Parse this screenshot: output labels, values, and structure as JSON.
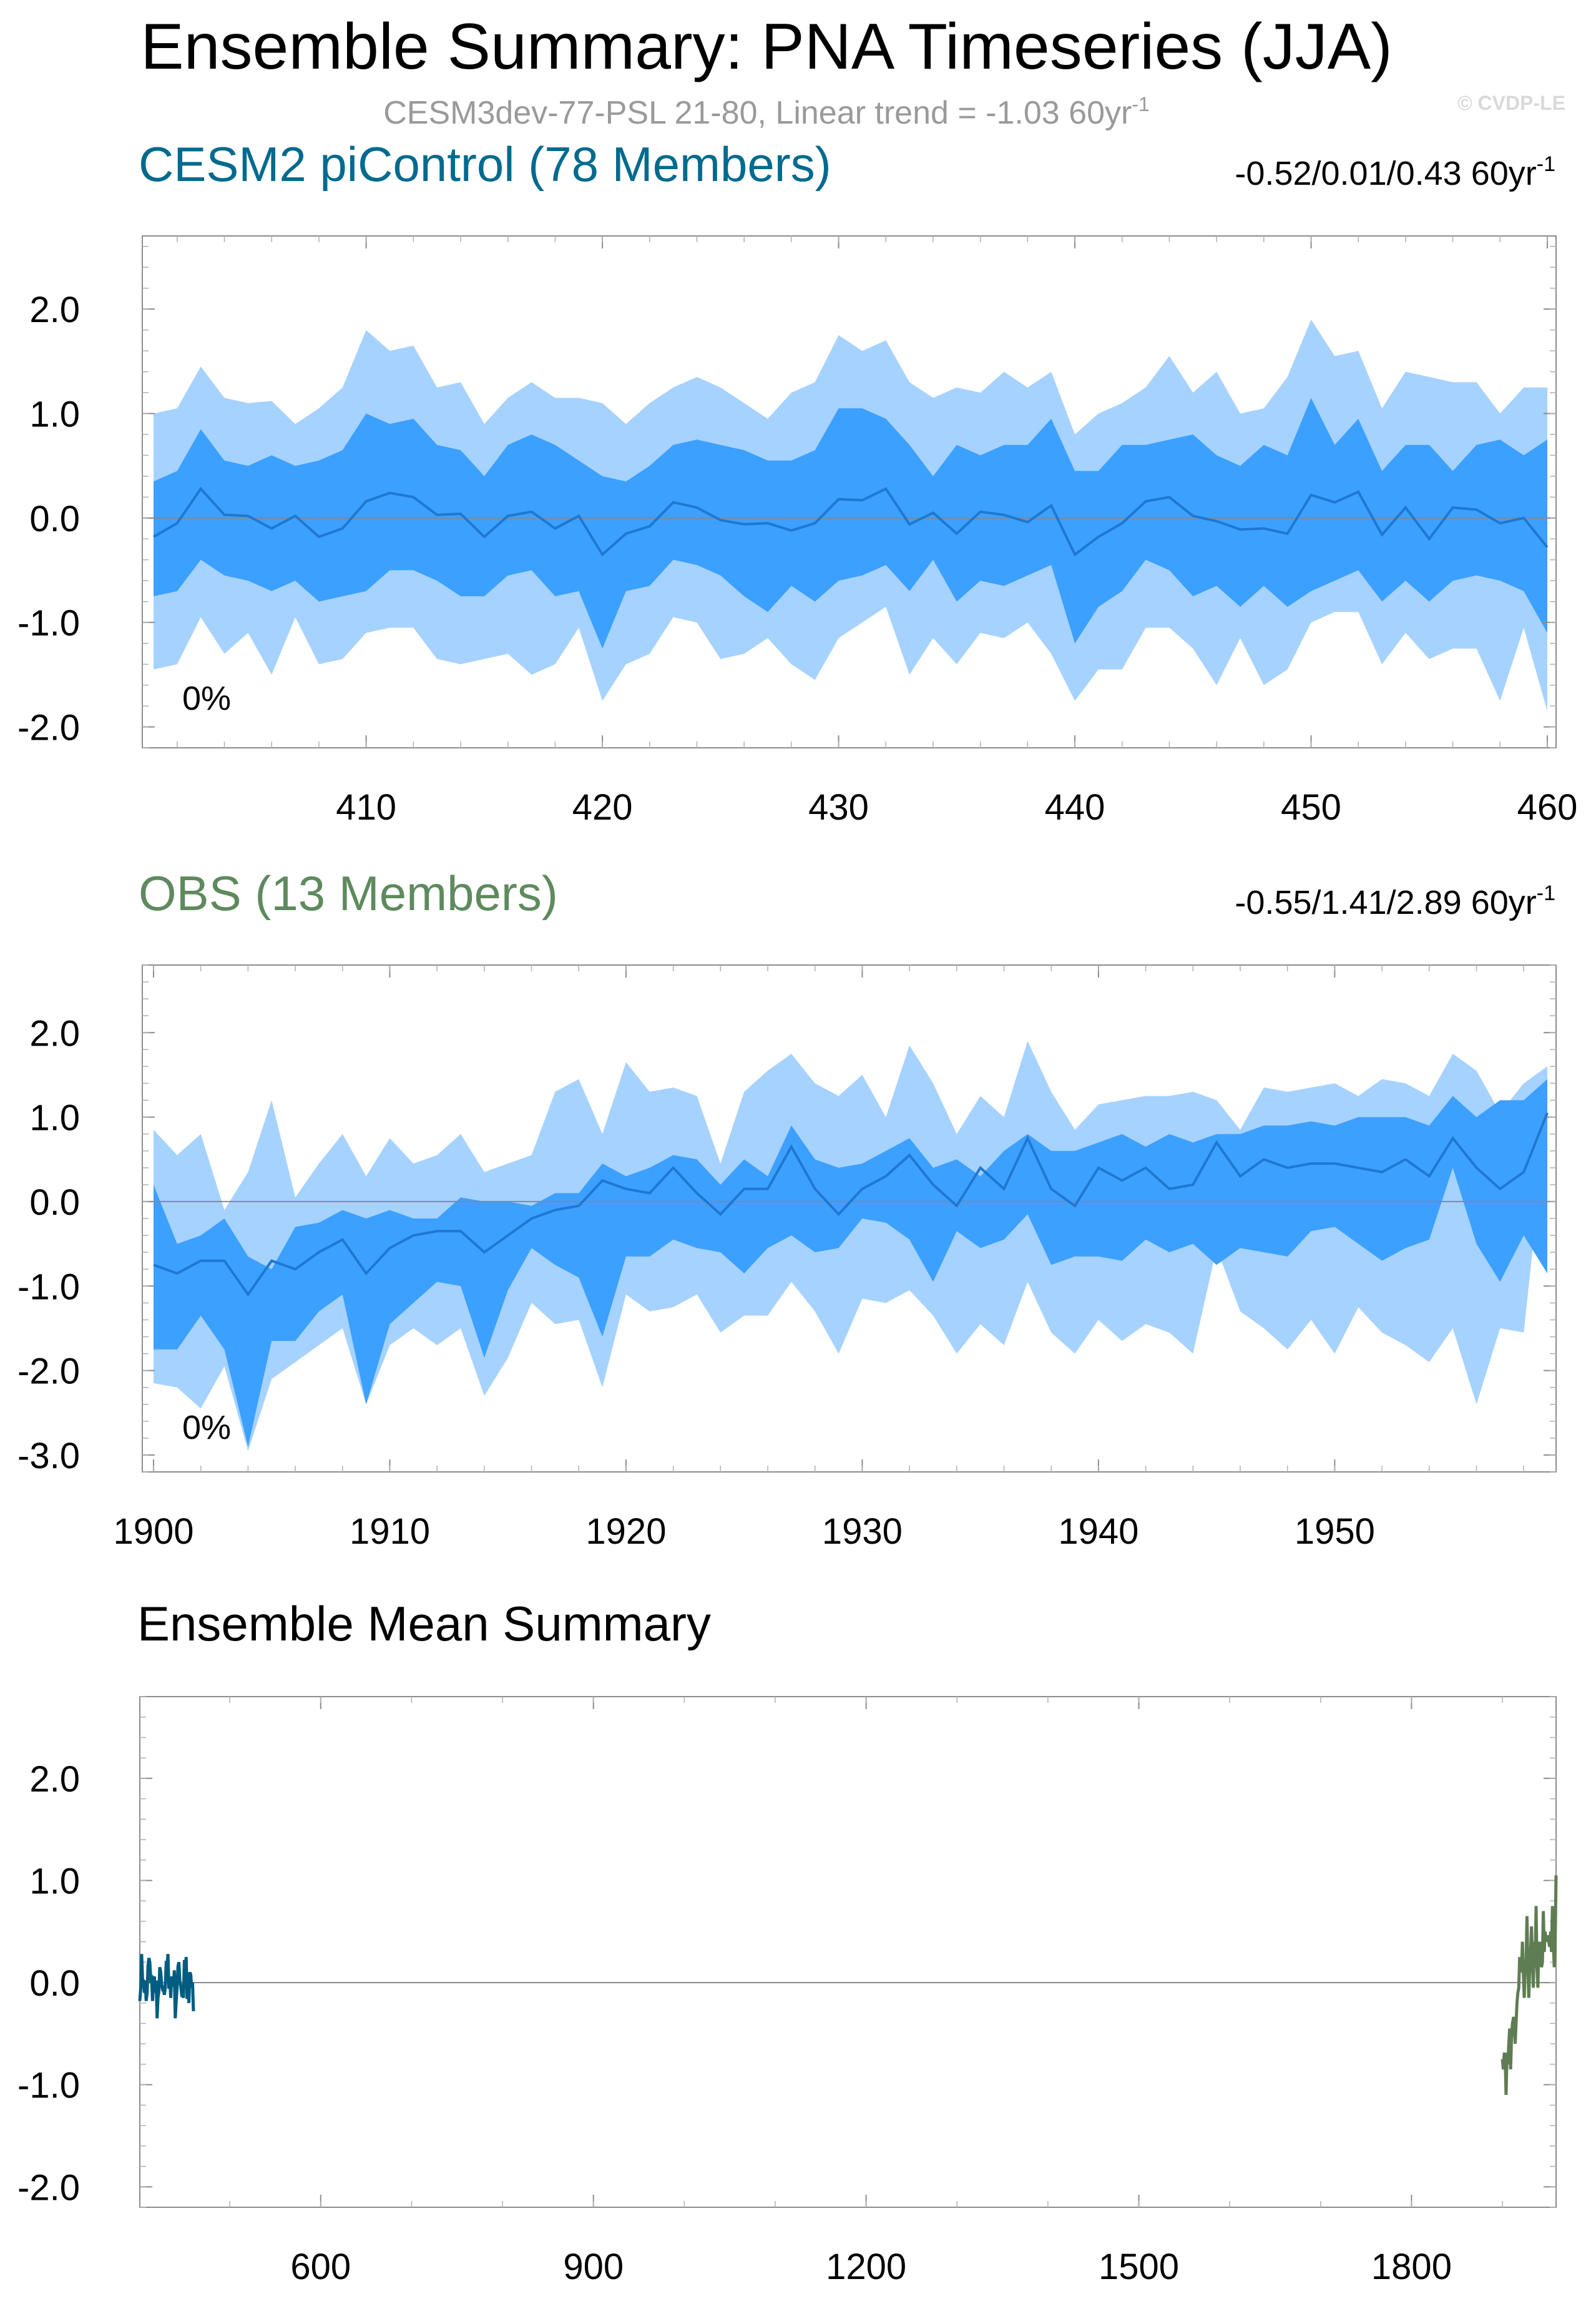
{
  "title": "Ensemble Summary: PNA Timeseries (JJA)",
  "subtitle": {
    "text": "CESM3dev-77-PSL 21-80, Linear trend = -1.03 60yr",
    "sup": "-1"
  },
  "watermark": "© CVDP-LE",
  "colors": {
    "outer_band": "#a6d2ff",
    "inner_band": "#3ca0ff",
    "mean_line": "#1e78d2",
    "zero_line": "#888888",
    "cesm_title": "#006a8e",
    "obs_title": "#5e8a5e",
    "cesm_mean": "#005c80",
    "obs_mean": "#5e7d52"
  },
  "chart_data": [
    {
      "type": "area",
      "id": "cesm",
      "title": "CESM2 piControl (78 Members)",
      "trend_label": {
        "text": "-0.52/0.01/0.43 60yr",
        "sup": "-1"
      },
      "pct_label": "0%",
      "x_start": 401,
      "xlim": [
        401,
        460
      ],
      "ylim": [
        -2.2,
        2.7
      ],
      "x_ticks": [
        410,
        420,
        430,
        440,
        450,
        460
      ],
      "x_tick_labels": [
        "410",
        "420",
        "430",
        "440",
        "450",
        "460"
      ],
      "y_ticks": [
        2.0,
        1.0,
        0.0,
        -1.0,
        -2.0
      ],
      "y_tick_labels": [
        "2.0",
        "1.0",
        "0.0",
        "-1.0",
        "-2.0"
      ],
      "series": [
        {
          "name": "p97.5",
          "values": [
            1.0,
            1.05,
            1.45,
            1.15,
            1.1,
            1.12,
            0.9,
            1.05,
            1.25,
            1.8,
            1.6,
            1.65,
            1.25,
            1.3,
            0.9,
            1.15,
            1.3,
            1.15,
            1.15,
            1.1,
            0.9,
            1.1,
            1.25,
            1.35,
            1.25,
            1.1,
            0.95,
            1.2,
            1.3,
            1.75,
            1.6,
            1.7,
            1.3,
            1.15,
            1.25,
            1.2,
            1.4,
            1.25,
            1.4,
            0.8,
            1.0,
            1.1,
            1.25,
            1.55,
            1.2,
            1.4,
            1.0,
            1.05,
            1.35,
            1.9,
            1.55,
            1.6,
            1.05,
            1.4,
            1.35,
            1.3,
            1.3,
            1.0,
            1.25,
            1.25
          ]
        },
        {
          "name": "p84",
          "values": [
            0.35,
            0.45,
            0.85,
            0.55,
            0.5,
            0.6,
            0.5,
            0.55,
            0.65,
            1.0,
            0.9,
            0.95,
            0.7,
            0.65,
            0.4,
            0.7,
            0.8,
            0.7,
            0.55,
            0.4,
            0.35,
            0.5,
            0.7,
            0.75,
            0.7,
            0.65,
            0.55,
            0.55,
            0.65,
            1.05,
            1.05,
            0.95,
            0.7,
            0.4,
            0.7,
            0.6,
            0.7,
            0.7,
            0.95,
            0.45,
            0.45,
            0.7,
            0.7,
            0.75,
            0.8,
            0.6,
            0.5,
            0.7,
            0.6,
            1.15,
            0.7,
            0.95,
            0.45,
            0.7,
            0.7,
            0.45,
            0.7,
            0.75,
            0.6,
            0.75
          ]
        },
        {
          "name": "mean",
          "values": [
            -0.18,
            -0.05,
            0.28,
            0.03,
            0.02,
            -0.1,
            0.02,
            -0.18,
            -0.1,
            0.16,
            0.24,
            0.2,
            0.03,
            0.04,
            -0.18,
            0.02,
            0.06,
            -0.1,
            0.02,
            -0.35,
            -0.15,
            -0.08,
            0.15,
            0.1,
            -0.02,
            -0.06,
            -0.05,
            -0.12,
            -0.05,
            0.18,
            0.17,
            0.28,
            -0.06,
            0.05,
            -0.15,
            0.06,
            0.03,
            -0.04,
            0.12,
            -0.35,
            -0.18,
            -0.05,
            0.16,
            0.2,
            0.02,
            -0.03,
            -0.11,
            -0.1,
            -0.15,
            0.22,
            0.15,
            0.25,
            -0.16,
            0.1,
            -0.2,
            0.1,
            0.08,
            -0.05,
            0.0,
            -0.28
          ]
        },
        {
          "name": "p16",
          "values": [
            -0.75,
            -0.7,
            -0.4,
            -0.55,
            -0.6,
            -0.7,
            -0.6,
            -0.8,
            -0.75,
            -0.7,
            -0.5,
            -0.5,
            -0.6,
            -0.75,
            -0.75,
            -0.55,
            -0.5,
            -0.75,
            -0.7,
            -1.25,
            -0.7,
            -0.65,
            -0.4,
            -0.45,
            -0.55,
            -0.75,
            -0.9,
            -0.65,
            -0.8,
            -0.6,
            -0.55,
            -0.45,
            -0.7,
            -0.4,
            -0.8,
            -0.6,
            -0.65,
            -0.55,
            -0.45,
            -1.2,
            -0.85,
            -0.7,
            -0.4,
            -0.5,
            -0.75,
            -0.65,
            -0.85,
            -0.65,
            -0.85,
            -0.7,
            -0.6,
            -0.5,
            -0.8,
            -0.6,
            -0.8,
            -0.6,
            -0.55,
            -0.6,
            -0.7,
            -1.1
          ]
        },
        {
          "name": "p2.5",
          "values": [
            -1.45,
            -1.4,
            -0.95,
            -1.3,
            -1.1,
            -1.5,
            -0.95,
            -1.4,
            -1.35,
            -1.1,
            -1.05,
            -1.05,
            -1.35,
            -1.4,
            -1.35,
            -1.3,
            -1.5,
            -1.4,
            -1.05,
            -1.75,
            -1.4,
            -1.3,
            -0.95,
            -1.0,
            -1.35,
            -1.3,
            -1.15,
            -1.4,
            -1.55,
            -1.15,
            -1.0,
            -0.85,
            -1.5,
            -1.15,
            -1.4,
            -1.1,
            -1.15,
            -1.0,
            -1.3,
            -1.75,
            -1.45,
            -1.45,
            -1.05,
            -1.05,
            -1.25,
            -1.6,
            -1.15,
            -1.6,
            -1.45,
            -1.0,
            -0.9,
            -0.9,
            -1.4,
            -1.1,
            -1.35,
            -1.25,
            -1.25,
            -1.75,
            -1.05,
            -1.85
          ]
        }
      ]
    },
    {
      "type": "area",
      "id": "obs",
      "title": "OBS (13 Members)",
      "trend_label": {
        "text": "-0.55/1.41/2.89 60yr",
        "sup": "-1"
      },
      "pct_label": "0%",
      "x_start": 1900,
      "xlim": [
        1900,
        1959
      ],
      "ylim": [
        -3.2,
        2.8
      ],
      "x_ticks": [
        1900,
        1910,
        1920,
        1930,
        1940,
        1950
      ],
      "x_tick_labels": [
        "1900",
        "1910",
        "1920",
        "1930",
        "1940",
        "1950"
      ],
      "y_ticks": [
        2.0,
        1.0,
        0.0,
        -1.0,
        -2.0,
        -3.0
      ],
      "y_tick_labels": [
        "2.0",
        "1.0",
        "0.0",
        "-1.0",
        "-2.0",
        "-3.0"
      ],
      "series": [
        {
          "name": "p97.5",
          "values": [
            0.85,
            0.55,
            0.8,
            -0.1,
            0.35,
            1.2,
            0.05,
            0.45,
            0.8,
            0.3,
            0.75,
            0.45,
            0.55,
            0.8,
            0.35,
            0.45,
            0.55,
            1.3,
            1.45,
            0.8,
            1.65,
            1.3,
            1.35,
            1.25,
            0.45,
            1.3,
            1.55,
            1.75,
            1.4,
            1.25,
            1.5,
            1.0,
            1.85,
            1.4,
            0.8,
            1.25,
            1.0,
            1.9,
            1.3,
            0.85,
            1.15,
            1.2,
            1.25,
            1.25,
            1.3,
            1.2,
            0.85,
            1.35,
            1.3,
            1.35,
            1.4,
            1.25,
            1.45,
            1.4,
            1.25,
            1.75,
            1.55,
            1.05,
            1.4,
            1.6
          ]
        },
        {
          "name": "p84",
          "values": [
            0.2,
            -0.5,
            -0.4,
            -0.2,
            -0.65,
            -0.8,
            -0.3,
            -0.25,
            -0.1,
            -0.2,
            -0.1,
            -0.2,
            -0.2,
            0.05,
            0.0,
            0.0,
            -0.05,
            0.1,
            0.1,
            0.45,
            0.3,
            0.4,
            0.55,
            0.5,
            0.2,
            0.5,
            0.3,
            0.9,
            0.5,
            0.4,
            0.45,
            0.6,
            0.75,
            0.4,
            0.5,
            0.3,
            0.6,
            0.8,
            0.6,
            0.6,
            0.7,
            0.8,
            0.65,
            0.8,
            0.7,
            0.8,
            0.8,
            0.9,
            0.9,
            0.95,
            0.9,
            1.0,
            1.0,
            1.0,
            0.9,
            1.25,
            1.0,
            1.2,
            1.2,
            1.45
          ]
        },
        {
          "name": "mean",
          "values": [
            -0.75,
            -0.85,
            -0.7,
            -0.7,
            -1.1,
            -0.7,
            -0.8,
            -0.6,
            -0.45,
            -0.85,
            -0.55,
            -0.4,
            -0.35,
            -0.35,
            -0.6,
            -0.4,
            -0.2,
            -0.1,
            -0.05,
            0.25,
            0.15,
            0.1,
            0.4,
            0.1,
            -0.15,
            0.15,
            0.15,
            0.65,
            0.15,
            -0.15,
            0.15,
            0.3,
            0.55,
            0.2,
            -0.05,
            0.4,
            0.15,
            0.75,
            0.15,
            -0.05,
            0.4,
            0.25,
            0.4,
            0.15,
            0.2,
            0.7,
            0.3,
            0.5,
            0.4,
            0.45,
            0.45,
            0.4,
            0.35,
            0.5,
            0.3,
            0.75,
            0.4,
            0.15,
            0.35,
            1.05
          ]
        },
        {
          "name": "p16",
          "values": [
            -1.75,
            -1.75,
            -1.35,
            -1.75,
            -2.9,
            -1.65,
            -1.65,
            -1.3,
            -1.1,
            -2.4,
            -1.45,
            -1.2,
            -0.95,
            -1.0,
            -1.85,
            -1.05,
            -0.55,
            -0.75,
            -0.9,
            -1.6,
            -0.65,
            -0.65,
            -0.45,
            -0.55,
            -0.6,
            -0.85,
            -0.55,
            -0.4,
            -0.6,
            -0.55,
            -0.2,
            -0.25,
            -0.45,
            -0.95,
            -0.35,
            -0.55,
            -0.45,
            -0.15,
            -0.75,
            -0.65,
            -0.65,
            -0.7,
            -0.45,
            -0.6,
            -0.5,
            -0.75,
            -0.55,
            -0.6,
            -0.65,
            -0.35,
            -0.3,
            -0.5,
            -0.7,
            -0.55,
            -0.45,
            0.4,
            -0.5,
            -0.95,
            -0.4,
            -0.85
          ]
        },
        {
          "name": "p2.5",
          "values": [
            -2.15,
            -2.2,
            -2.45,
            -1.95,
            -2.95,
            -2.1,
            -1.9,
            -1.7,
            -1.5,
            -2.4,
            -1.7,
            -1.5,
            -1.7,
            -1.5,
            -2.3,
            -1.85,
            -1.2,
            -1.45,
            -1.4,
            -2.2,
            -1.1,
            -1.3,
            -1.25,
            -1.1,
            -1.55,
            -1.35,
            -1.35,
            -0.95,
            -1.3,
            -1.8,
            -1.15,
            -1.2,
            -1.05,
            -1.35,
            -1.8,
            -1.45,
            -1.7,
            -0.95,
            -1.55,
            -1.8,
            -1.4,
            -1.65,
            -1.45,
            -1.55,
            -1.8,
            -0.55,
            -1.3,
            -1.5,
            -1.75,
            -1.4,
            -1.8,
            -1.25,
            -1.55,
            -1.7,
            -1.9,
            -1.5,
            -2.4,
            -1.5,
            -1.55,
            1.05
          ]
        }
      ]
    },
    {
      "type": "line",
      "id": "summary",
      "title": "Ensemble Mean Summary",
      "xlim": [
        401,
        1959
      ],
      "ylim": [
        -2.2,
        2.8
      ],
      "x_ticks": [
        600,
        900,
        1200,
        1500,
        1800
      ],
      "x_tick_labels": [
        "600",
        "900",
        "1200",
        "1500",
        "1800"
      ],
      "y_ticks": [
        2.0,
        1.0,
        0.0,
        -1.0,
        -2.0
      ],
      "y_tick_labels": [
        "2.0",
        "1.0",
        "0.0",
        "-1.0",
        "-2.0"
      ],
      "series": [
        {
          "name": "CESM2 piControl",
          "ref": "cesm",
          "color_key": "cesm_mean"
        },
        {
          "name": "OBS",
          "ref": "obs",
          "color_key": "obs_mean"
        }
      ]
    }
  ]
}
